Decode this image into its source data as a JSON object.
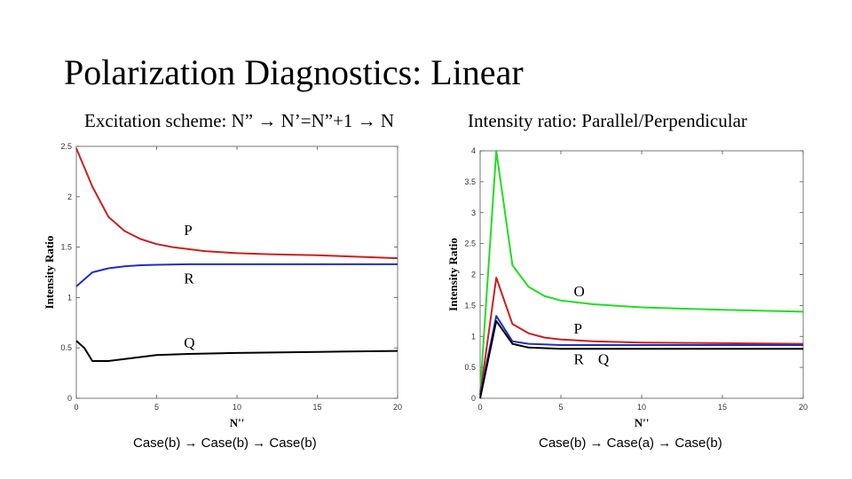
{
  "slide": {
    "title": "Polarization Diagnostics: Linear",
    "subtitle_left": "Excitation scheme: N” → N’=N”+1 → N",
    "subtitle_right": "Intensity ratio: Parallel/Perpendicular",
    "caption_left": "Case(b) → Case(b) → Case(b)",
    "caption_right": "Case(b) → Case(a) → Case(b)"
  },
  "chart_data": [
    {
      "type": "line",
      "title": "",
      "xlabel": "N''",
      "ylabel": "Intensity Ratio",
      "xlim": [
        0,
        20
      ],
      "ylim": [
        0,
        2.5
      ],
      "xticks": [
        0,
        5,
        10,
        15,
        20
      ],
      "yticks": [
        0,
        0.5,
        1,
        1.5,
        2,
        2.5
      ],
      "xtick_labels": [
        "0",
        "5",
        "10",
        "15",
        "20"
      ],
      "ytick_labels": [
        "0",
        "0.5",
        "1",
        "1.5",
        "2",
        "2.5"
      ],
      "series": [
        {
          "name": "P",
          "color": "#cc1f1f",
          "x": [
            0,
            1,
            2,
            3,
            4,
            5,
            6,
            7,
            8,
            10,
            12,
            15,
            20
          ],
          "values": [
            2.48,
            2.1,
            1.8,
            1.66,
            1.58,
            1.53,
            1.5,
            1.48,
            1.46,
            1.44,
            1.43,
            1.42,
            1.39
          ]
        },
        {
          "name": "R",
          "color": "#1f2fbf",
          "x": [
            0,
            1,
            2,
            3,
            4,
            5,
            7,
            10,
            15,
            20
          ],
          "values": [
            1.11,
            1.25,
            1.29,
            1.31,
            1.32,
            1.325,
            1.33,
            1.33,
            1.33,
            1.33
          ]
        },
        {
          "name": "Q",
          "color": "#000000",
          "x": [
            0,
            0.5,
            1,
            2,
            3,
            5,
            7,
            10,
            15,
            20
          ],
          "values": [
            0.57,
            0.5,
            0.37,
            0.37,
            0.39,
            0.43,
            0.44,
            0.45,
            0.46,
            0.47
          ]
        }
      ],
      "annotations": [
        {
          "text": "P",
          "x": 6.7,
          "y": 1.62
        },
        {
          "text": "R",
          "x": 6.7,
          "y": 1.14
        },
        {
          "text": "Q",
          "x": 6.7,
          "y": 0.5
        }
      ]
    },
    {
      "type": "line",
      "title": "",
      "xlabel": "N''",
      "ylabel": "Intensity Ratio",
      "xlim": [
        0,
        20
      ],
      "ylim": [
        0,
        4
      ],
      "xticks": [
        0,
        5,
        10,
        15,
        20
      ],
      "yticks": [
        0,
        0.5,
        1,
        1.5,
        2,
        2.5,
        3,
        3.5,
        4
      ],
      "xtick_labels": [
        "0",
        "5",
        "10",
        "15",
        "20"
      ],
      "ytick_labels": [
        "0",
        "0.5",
        "1",
        "1.5",
        "2",
        "2.5",
        "3",
        "3.5",
        "4"
      ],
      "series": [
        {
          "name": "O",
          "color": "#22dd22",
          "x": [
            0,
            1,
            2,
            3,
            4,
            5,
            7,
            10,
            15,
            20
          ],
          "values": [
            0.1,
            4.0,
            2.15,
            1.8,
            1.65,
            1.58,
            1.52,
            1.47,
            1.43,
            1.4
          ]
        },
        {
          "name": "P",
          "color": "#cc1f1f",
          "x": [
            0,
            1,
            2,
            3,
            4,
            5,
            7,
            10,
            15,
            20
          ],
          "values": [
            0.05,
            1.95,
            1.2,
            1.05,
            0.98,
            0.95,
            0.92,
            0.9,
            0.89,
            0.88
          ]
        },
        {
          "name": "R",
          "color": "#1f2fbf",
          "x": [
            0,
            1,
            2,
            3,
            5,
            7,
            10,
            15,
            20
          ],
          "values": [
            0.05,
            1.33,
            0.92,
            0.88,
            0.86,
            0.86,
            0.86,
            0.86,
            0.86
          ]
        },
        {
          "name": "Q",
          "color": "#000000",
          "x": [
            0,
            1,
            2,
            3,
            5,
            7,
            10,
            15,
            20
          ],
          "values": [
            0.0,
            1.25,
            0.88,
            0.82,
            0.8,
            0.8,
            0.8,
            0.8,
            0.8
          ]
        }
      ],
      "annotations": [
        {
          "text": "O",
          "x": 5.8,
          "y": 1.65
        },
        {
          "text": "P",
          "x": 5.8,
          "y": 1.05
        },
        {
          "text": "R",
          "x": 5.8,
          "y": 0.55
        },
        {
          "text": "Q",
          "x": 7.3,
          "y": 0.55
        }
      ]
    }
  ]
}
